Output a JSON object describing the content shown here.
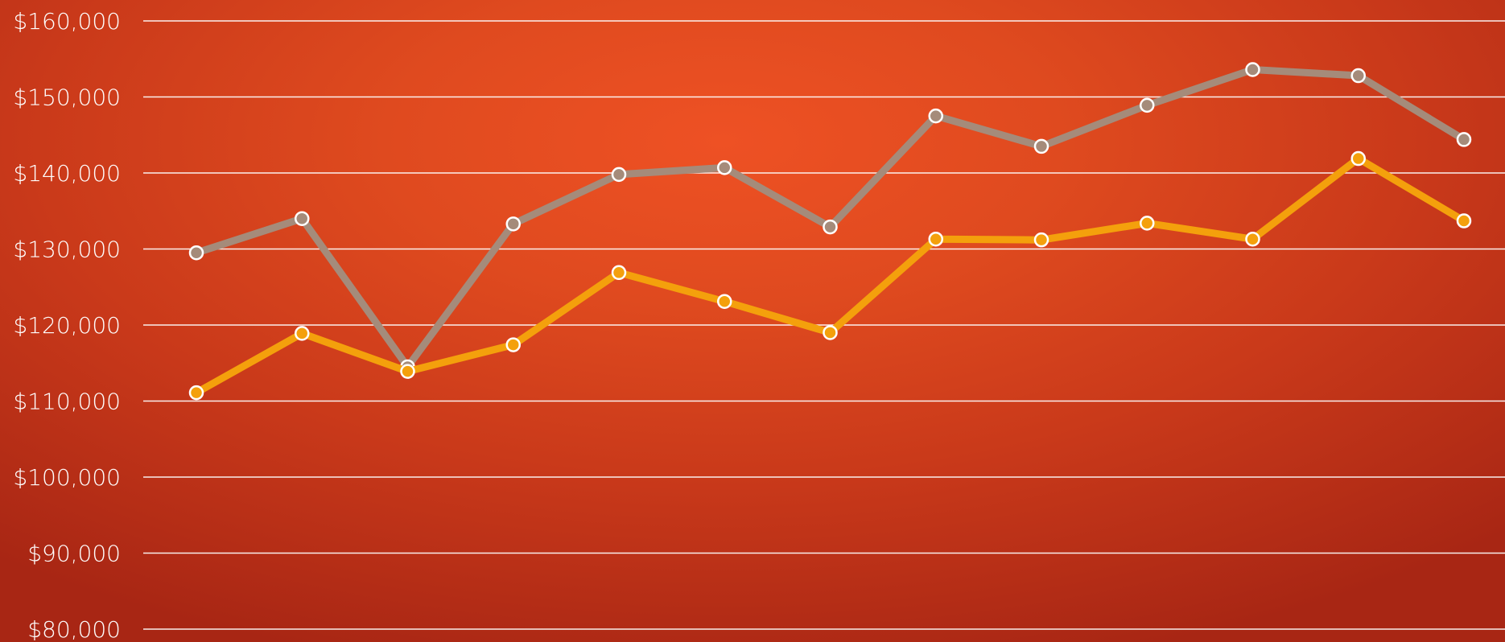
{
  "chart_data": {
    "type": "line",
    "title": "",
    "xlabel": "",
    "ylabel": "",
    "ylim": [
      80000,
      160000
    ],
    "yticks": [
      80000,
      90000,
      100000,
      110000,
      120000,
      130000,
      140000,
      150000,
      160000
    ],
    "ytick_labels": [
      "$80,000",
      "$90,000",
      "$100,000",
      "$110,000",
      "$120,000",
      "$130,000",
      "$140,000",
      "$150,000",
      "$160,000"
    ],
    "grid": true,
    "legend": "none",
    "background_colors": [
      "#ee5124",
      "#a82614"
    ],
    "series": [
      {
        "color": "#a58b7a",
        "values": [
          129500,
          134000,
          114500,
          133300,
          139800,
          140700,
          132900,
          147500,
          143500,
          148900,
          153600,
          152800,
          144400
        ]
      },
      {
        "color": "#f4a00c",
        "values": [
          111100,
          118900,
          113900,
          117400,
          126900,
          123100,
          119000,
          131300,
          131200,
          133400,
          131300,
          141900,
          133700
        ]
      }
    ]
  }
}
